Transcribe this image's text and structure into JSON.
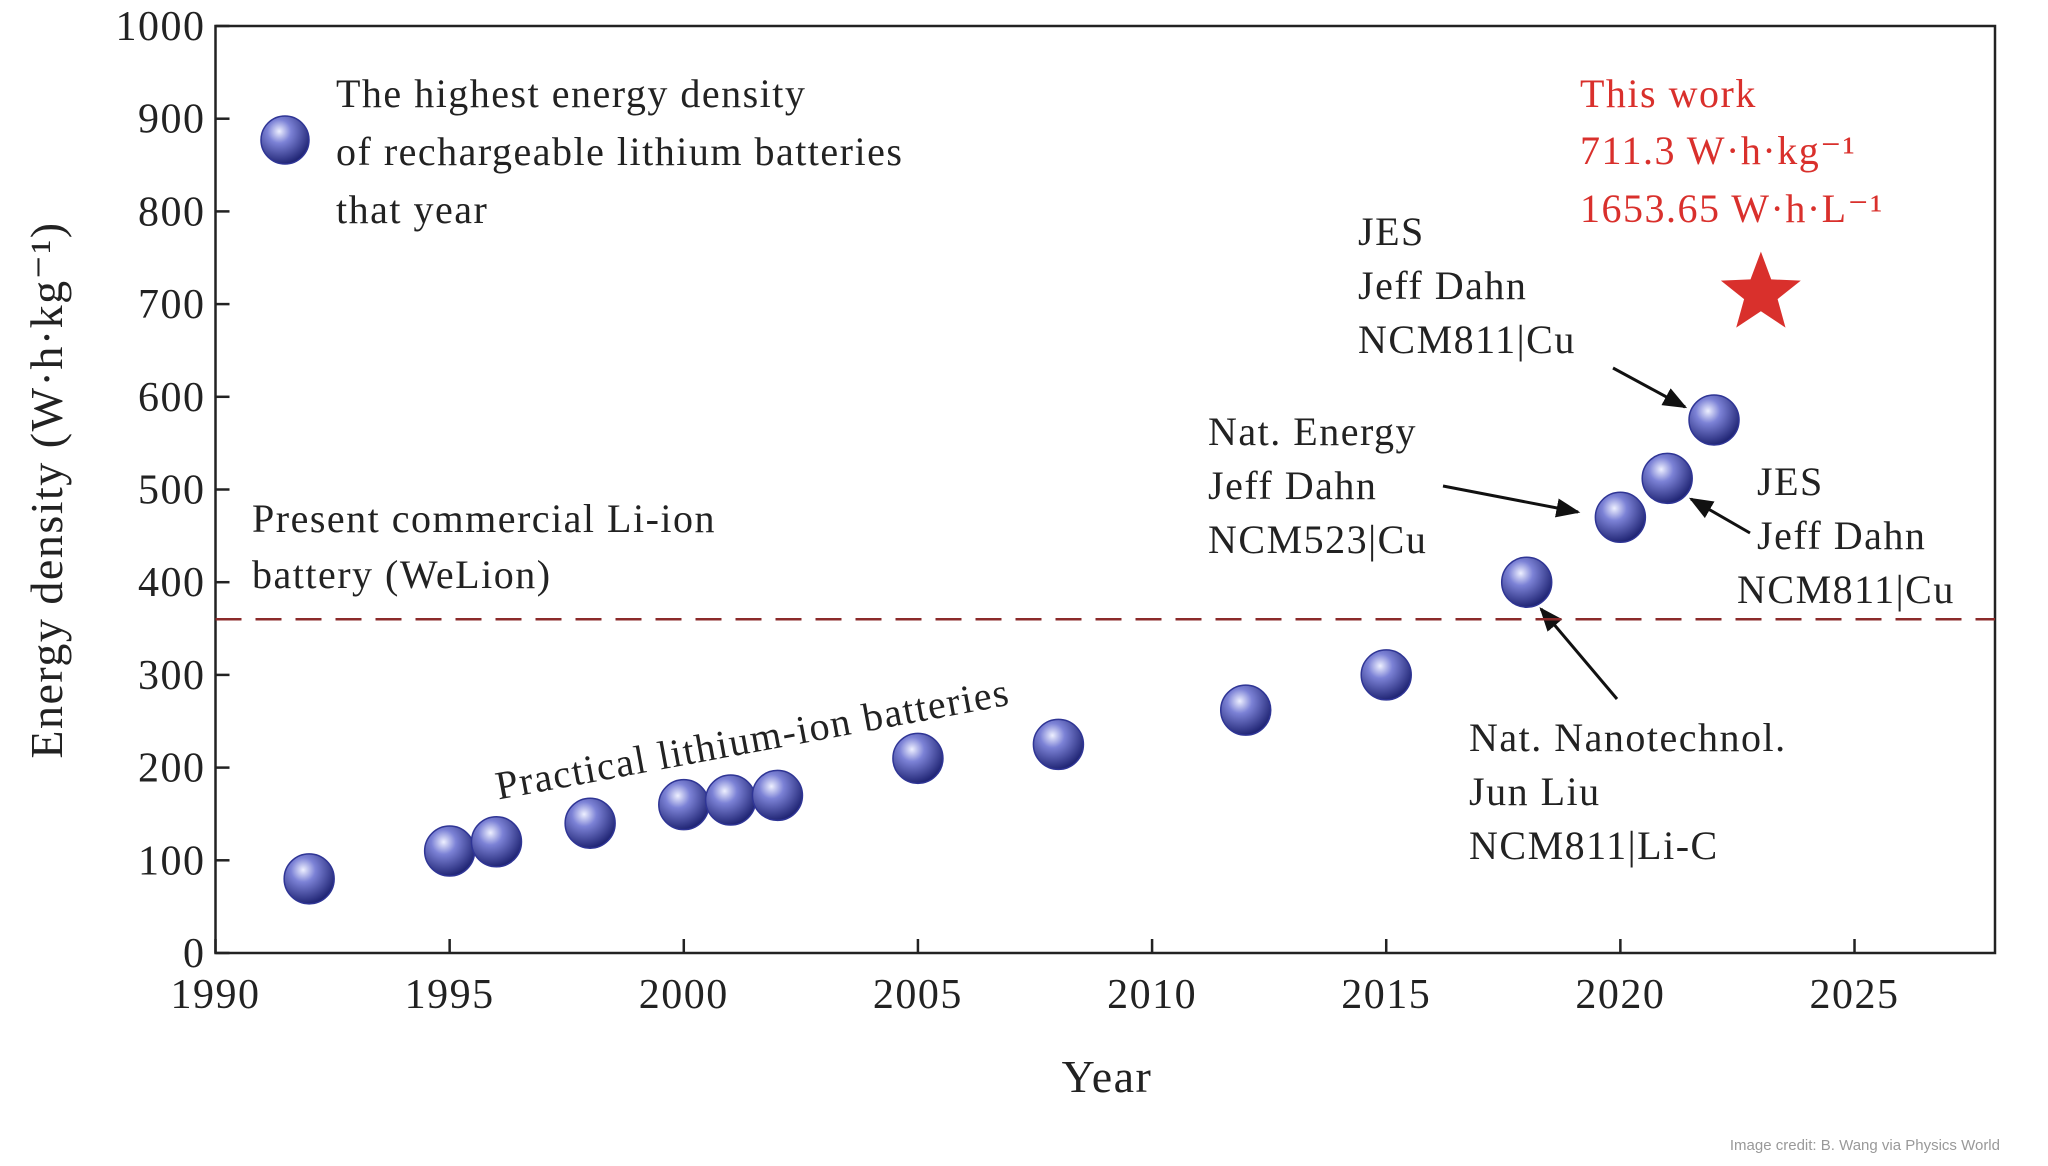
{
  "chart_data": {
    "type": "scatter",
    "x_label": "Year",
    "y_label": "Energy density (W·h·kg⁻¹)",
    "xlim": [
      1990,
      2028
    ],
    "ylim": [
      0,
      1000
    ],
    "xticks": [
      1990,
      1995,
      2000,
      2005,
      2010,
      2015,
      2020,
      2025
    ],
    "yticks": [
      0,
      100,
      200,
      300,
      400,
      500,
      600,
      700,
      800,
      900,
      1000
    ],
    "series": [
      {
        "name": "The highest energy density of rechargeable lithium batteries that year",
        "marker": "sphere",
        "color": "#2f3595",
        "x": [
          1992,
          1995,
          1996,
          1998,
          2000,
          2001,
          2002,
          2005,
          2008,
          2012,
          2015,
          2018,
          2020,
          2021,
          2022
        ],
        "values": [
          80,
          110,
          120,
          140,
          160,
          165,
          170,
          210,
          225,
          262,
          300,
          400,
          470,
          512,
          575
        ]
      },
      {
        "name": "This work",
        "marker": "star",
        "color": "#d9302c",
        "x": [
          2023
        ],
        "values": [
          711.3
        ],
        "value_labels": [
          "711.3 W·h·kg⁻¹"
        ],
        "note": "1653.65 W·h·L⁻¹"
      }
    ],
    "reference_line": {
      "value": 360,
      "color": "#8b2a2a",
      "label": [
        "Present commercial Li-ion",
        "battery (WeLion)"
      ]
    },
    "annotations": [
      {
        "text": [
          "JES",
          "Jeff Dahn",
          "NCM811|Cu"
        ]
      },
      {
        "text": [
          "Nat. Energy",
          "Jeff Dahn",
          "NCM523|Cu"
        ]
      },
      {
        "text": [
          "JES",
          "Jeff Dahn",
          "NCM811|Cu"
        ]
      },
      {
        "text": [
          "Nat. Nanotechnol.",
          "Jun Liu",
          "NCM811|Li-C"
        ]
      },
      {
        "text": [
          "Practical lithium-ion batteries"
        ]
      }
    ],
    "credit": "Image credit: B. Wang via Physics World"
  }
}
